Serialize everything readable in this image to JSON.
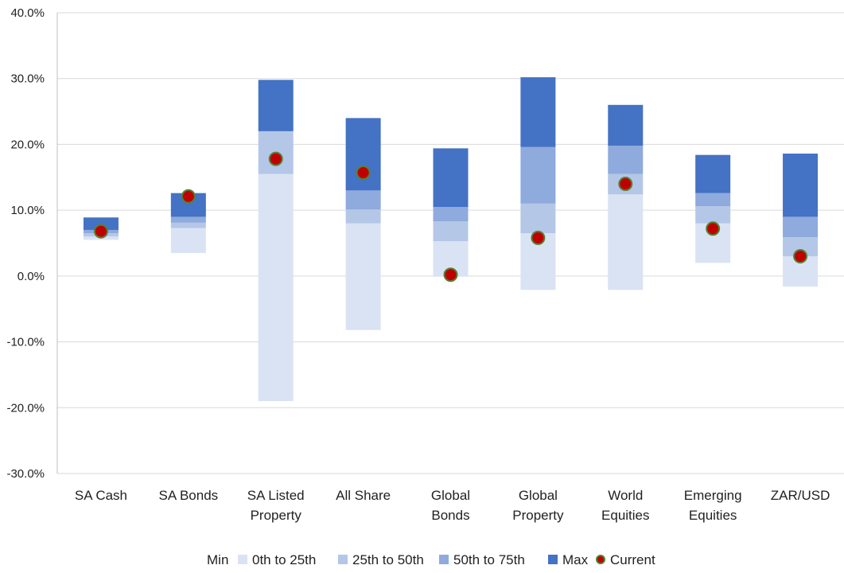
{
  "chart_data": {
    "type": "bar",
    "subtype": "stacked floating range with current marker",
    "categories": [
      [
        "SA Cash"
      ],
      [
        "SA Bonds"
      ],
      [
        "SA Listed",
        "Property"
      ],
      [
        "All Share"
      ],
      [
        "Global",
        "Bonds"
      ],
      [
        "Global",
        "Property"
      ],
      [
        "World",
        "Equities"
      ],
      [
        "Emerging",
        "Equities"
      ],
      [
        "ZAR/USD"
      ]
    ],
    "series": [
      {
        "name": "Min",
        "values": [
          5.5,
          3.5,
          -19.0,
          -8.2,
          -0.1,
          -2.1,
          -2.1,
          2.0,
          -1.6
        ]
      },
      {
        "name": "0th to 25th",
        "values": [
          6.0,
          7.3,
          15.5,
          8.0,
          5.3,
          6.5,
          12.4,
          8.0,
          3.0
        ]
      },
      {
        "name": "25th to 50th",
        "values": [
          6.5,
          8.1,
          22.0,
          10.1,
          8.3,
          11.0,
          15.5,
          10.6,
          5.9
        ]
      },
      {
        "name": "50th to 75th",
        "values": [
          7.0,
          9.0,
          22.0,
          13.0,
          10.5,
          19.6,
          19.8,
          12.6,
          9.0
        ]
      },
      {
        "name": "Max",
        "values": [
          8.9,
          12.6,
          29.8,
          24.0,
          19.4,
          30.2,
          26.0,
          18.4,
          18.6
        ]
      },
      {
        "name": "Current",
        "values": [
          6.8,
          12.1,
          17.8,
          15.7,
          0.2,
          5.8,
          14.0,
          7.2,
          3.0
        ]
      }
    ],
    "ylim": [
      -30,
      40
    ],
    "yticks": [
      "40.0%",
      "30.0%",
      "20.0%",
      "10.0%",
      "0.0%",
      "-10.0%",
      "-20.0%",
      "-30.0%"
    ],
    "ytick_values": [
      40,
      30,
      20,
      10,
      0,
      -10,
      -20,
      -30
    ],
    "grid": true,
    "legend_position": "bottom",
    "colors": {
      "q1": "#dae3f3",
      "q2": "#b4c7e7",
      "q3": "#8faadc",
      "q4": "#4472c4",
      "current_fill": "#c00000",
      "current_edge": "#548235",
      "grid": "#d9d9d9",
      "axis": "#bfbfbf"
    },
    "legend": [
      {
        "label": "Min",
        "marker": "none"
      },
      {
        "label": "0th to 25th",
        "marker": "q1"
      },
      {
        "label": "25th to 50th",
        "marker": "q2"
      },
      {
        "label": "50th to 75th",
        "marker": "q3"
      },
      {
        "label": "Max",
        "marker": "q4"
      },
      {
        "label": "Current",
        "marker": "dot"
      }
    ]
  }
}
